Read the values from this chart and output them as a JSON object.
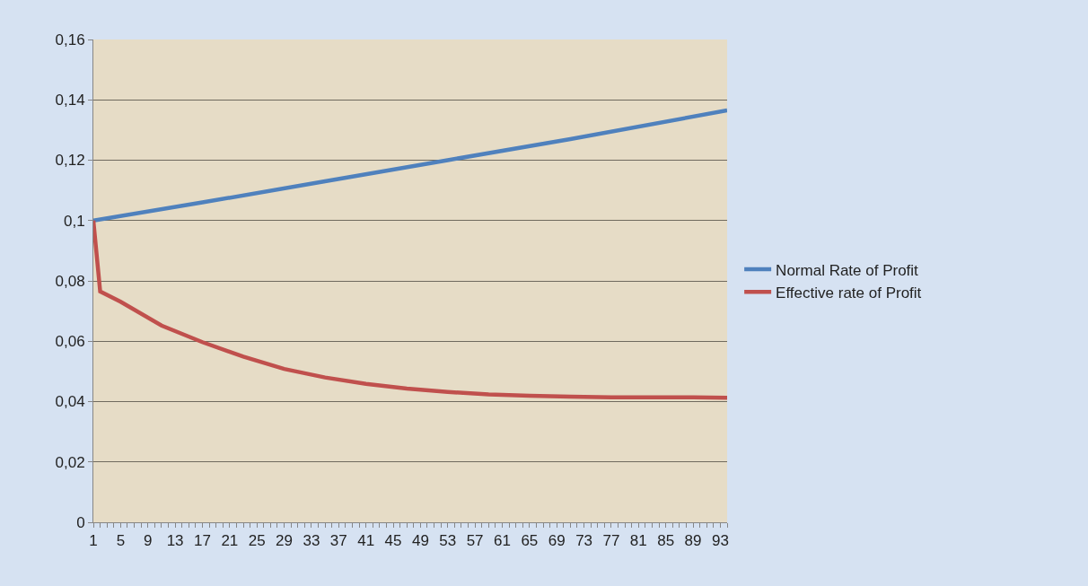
{
  "chart_data": {
    "type": "line",
    "x": [
      1,
      2,
      5,
      11,
      17,
      23,
      29,
      35,
      41,
      47,
      53,
      59,
      65,
      71,
      77,
      83,
      89,
      94
    ],
    "series": [
      {
        "name": "Normal Rate of Profit",
        "color": "#4f81bd",
        "x": [
          1,
          17,
          35,
          53,
          71,
          94
        ],
        "values": [
          0.1,
          0.106,
          0.113,
          0.12,
          0.127,
          0.1365
        ]
      },
      {
        "name": "Effective rate of Profit",
        "color": "#c0504d",
        "values": [
          0.1,
          0.0765,
          0.0731,
          0.0652,
          0.0597,
          0.0549,
          0.0508,
          0.048,
          0.0459,
          0.0443,
          0.0432,
          0.0424,
          0.0419,
          0.0416,
          0.0414,
          0.0414,
          0.0414,
          0.0413
        ]
      }
    ],
    "xlim": [
      1,
      94
    ],
    "xticks": [
      1,
      5,
      9,
      13,
      17,
      21,
      25,
      29,
      33,
      37,
      41,
      45,
      49,
      53,
      57,
      61,
      65,
      69,
      73,
      77,
      81,
      85,
      89,
      93
    ],
    "ylim": [
      0,
      0.16
    ],
    "yticks": [
      0,
      {
        "value": 0.02,
        "label": "0,02"
      },
      {
        "value": 0.04,
        "label": "0,04"
      },
      {
        "value": 0.06,
        "label": "0,06"
      },
      {
        "value": 0.08,
        "label": "0,08"
      },
      {
        "value": 0.1,
        "label": "0,1"
      },
      {
        "value": 0.12,
        "label": "0,12"
      },
      {
        "value": 0.14,
        "label": "0,14"
      },
      {
        "value": 0.16,
        "label": "0,16"
      }
    ],
    "grid": "y",
    "legend": "right",
    "marker": "none",
    "line_style": "solid"
  }
}
